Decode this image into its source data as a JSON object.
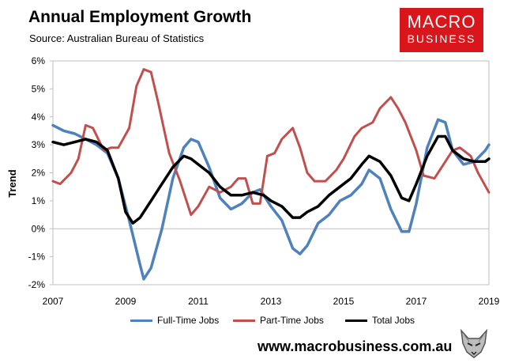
{
  "header": {
    "title": "Annual Employment Growth",
    "source": "Source: Australian Bureau of Statistics"
  },
  "logo": {
    "line1": "MACRO",
    "line2": "BUSINESS"
  },
  "footer": {
    "url": "www.macrobusiness.com.au"
  },
  "colors": {
    "full_time": "#4f81bd",
    "part_time": "#c0504d",
    "total": "#000000"
  },
  "chart_data": {
    "type": "line",
    "title": "Annual Employment Growth",
    "xlabel": "",
    "ylabel": "Trend",
    "xlim": [
      2007,
      2019
    ],
    "ylim": [
      -2,
      6
    ],
    "x_ticks": [
      "2007",
      "2009",
      "2011",
      "2013",
      "2015",
      "2017",
      "2019"
    ],
    "y_ticks": [
      "-2%",
      "-1%",
      "0%",
      "1%",
      "2%",
      "3%",
      "4%",
      "5%",
      "6%"
    ],
    "grid": false,
    "legend": "bottom",
    "series": [
      {
        "name": "Full-Time Jobs",
        "x": [
          2007,
          2007.3,
          2007.6,
          2007.9,
          2008.2,
          2008.5,
          2008.8,
          2009.1,
          2009.4,
          2009.5,
          2009.7,
          2010,
          2010.3,
          2010.6,
          2010.8,
          2011,
          2011.3,
          2011.6,
          2011.9,
          2012.2,
          2012.5,
          2012.7,
          2013,
          2013.3,
          2013.6,
          2013.8,
          2014,
          2014.3,
          2014.6,
          2014.9,
          2015.2,
          2015.5,
          2015.7,
          2016,
          2016.3,
          2016.6,
          2016.8,
          2017,
          2017.3,
          2017.6,
          2017.8,
          2018,
          2018.3,
          2018.6,
          2018.9,
          2019
        ],
        "values": [
          3.7,
          3.5,
          3.4,
          3.2,
          3.0,
          2.7,
          1.8,
          0.3,
          -1.3,
          -1.8,
          -1.4,
          0.0,
          1.8,
          2.9,
          3.2,
          3.1,
          2.2,
          1.1,
          0.7,
          0.9,
          1.3,
          1.4,
          0.8,
          0.3,
          -0.7,
          -0.9,
          -0.6,
          0.2,
          0.5,
          1.0,
          1.2,
          1.6,
          2.1,
          1.8,
          0.7,
          -0.1,
          -0.1,
          0.9,
          2.9,
          3.9,
          3.8,
          2.8,
          2.3,
          2.4,
          2.8,
          3.0
        ]
      },
      {
        "name": "Part-Time Jobs",
        "x": [
          2007,
          2007.2,
          2007.5,
          2007.7,
          2007.9,
          2008.1,
          2008.4,
          2008.6,
          2008.8,
          2009.1,
          2009.3,
          2009.5,
          2009.7,
          2009.9,
          2010.2,
          2010.5,
          2010.8,
          2011,
          2011.3,
          2011.6,
          2011.9,
          2012.1,
          2012.3,
          2012.5,
          2012.7,
          2012.9,
          2013.1,
          2013.3,
          2013.6,
          2013.8,
          2014,
          2014.2,
          2014.5,
          2014.8,
          2015,
          2015.3,
          2015.5,
          2015.8,
          2016,
          2016.3,
          2016.5,
          2016.7,
          2017,
          2017.2,
          2017.5,
          2017.7,
          2018,
          2018.2,
          2018.5,
          2018.7,
          2019
        ],
        "values": [
          1.7,
          1.6,
          2.0,
          2.5,
          3.7,
          3.6,
          2.8,
          2.9,
          2.9,
          3.6,
          5.1,
          5.7,
          5.6,
          4.5,
          2.7,
          1.7,
          0.5,
          0.8,
          1.5,
          1.3,
          1.5,
          1.8,
          1.8,
          0.9,
          0.9,
          2.6,
          2.7,
          3.2,
          3.6,
          2.9,
          2.0,
          1.7,
          1.7,
          2.1,
          2.5,
          3.3,
          3.6,
          3.8,
          4.3,
          4.7,
          4.3,
          3.8,
          2.8,
          1.9,
          1.8,
          2.2,
          2.8,
          2.9,
          2.6,
          2.0,
          1.3
        ]
      },
      {
        "name": "Total Jobs",
        "x": [
          2007,
          2007.3,
          2007.6,
          2007.9,
          2008.2,
          2008.5,
          2008.8,
          2009,
          2009.2,
          2009.4,
          2009.7,
          2010,
          2010.3,
          2010.6,
          2010.8,
          2011,
          2011.3,
          2011.6,
          2011.9,
          2012.2,
          2012.5,
          2012.8,
          2013,
          2013.3,
          2013.6,
          2013.8,
          2014,
          2014.3,
          2014.6,
          2014.9,
          2015.2,
          2015.5,
          2015.7,
          2016,
          2016.3,
          2016.6,
          2016.8,
          2017,
          2017.3,
          2017.6,
          2017.8,
          2018,
          2018.3,
          2018.6,
          2018.9,
          2019
        ],
        "values": [
          3.1,
          3.0,
          3.1,
          3.2,
          3.1,
          2.8,
          1.8,
          0.6,
          0.2,
          0.4,
          1.0,
          1.6,
          2.2,
          2.6,
          2.5,
          2.3,
          2.0,
          1.5,
          1.2,
          1.2,
          1.3,
          1.2,
          1.0,
          0.8,
          0.4,
          0.4,
          0.6,
          0.8,
          1.2,
          1.5,
          1.8,
          2.3,
          2.6,
          2.4,
          1.9,
          1.1,
          1.0,
          1.6,
          2.6,
          3.3,
          3.3,
          2.8,
          2.5,
          2.4,
          2.4,
          2.5
        ]
      }
    ]
  }
}
